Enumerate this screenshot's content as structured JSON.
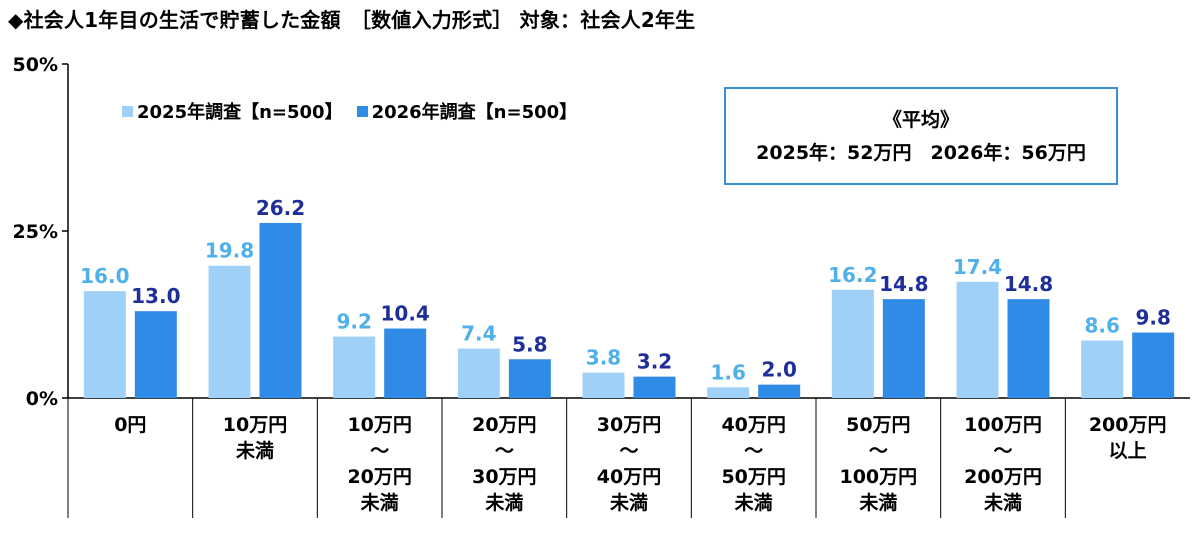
{
  "title": "◆社会人1年目の生活で貯蓄した金額　［数値入力形式］ 対象：社会人2年生",
  "average_box": {
    "heading": "《平均》",
    "text": "2025年：52万円　2026年：56万円"
  },
  "colors": {
    "series_2025": "#9fd0f8",
    "series_2026": "#2f8be6",
    "label_2025": "#4fb0ea",
    "label_2026": "#1f2f99",
    "axis": "#000000",
    "box_border": "#3b8fd6"
  },
  "chart_data": {
    "type": "bar",
    "ylim": [
      0,
      50
    ],
    "y_ticks": [
      {
        "value": 0,
        "label": "0%"
      },
      {
        "value": 25,
        "label": "25%"
      },
      {
        "value": 50,
        "label": "50%"
      }
    ],
    "categories": [
      [
        "0円"
      ],
      [
        "10万円",
        "未満"
      ],
      [
        "10万円",
        "～",
        "20万円",
        "未満"
      ],
      [
        "20万円",
        "～",
        "30万円",
        "未満"
      ],
      [
        "30万円",
        "～",
        "40万円",
        "未満"
      ],
      [
        "40万円",
        "～",
        "50万円",
        "未満"
      ],
      [
        "50万円",
        "～",
        "100万円",
        "未満"
      ],
      [
        "100万円",
        "～",
        "200万円",
        "未満"
      ],
      [
        "200万円",
        "以上"
      ]
    ],
    "series": [
      {
        "name": "2025年調査【n=500】",
        "values": [
          16.0,
          19.8,
          9.2,
          7.4,
          3.8,
          1.6,
          16.2,
          17.4,
          8.6
        ]
      },
      {
        "name": "2026年調査【n=500】",
        "values": [
          13.0,
          26.2,
          10.4,
          5.8,
          3.2,
          2.0,
          14.8,
          14.8,
          9.8
        ]
      }
    ],
    "legend_position": "top-left",
    "grid": false
  }
}
